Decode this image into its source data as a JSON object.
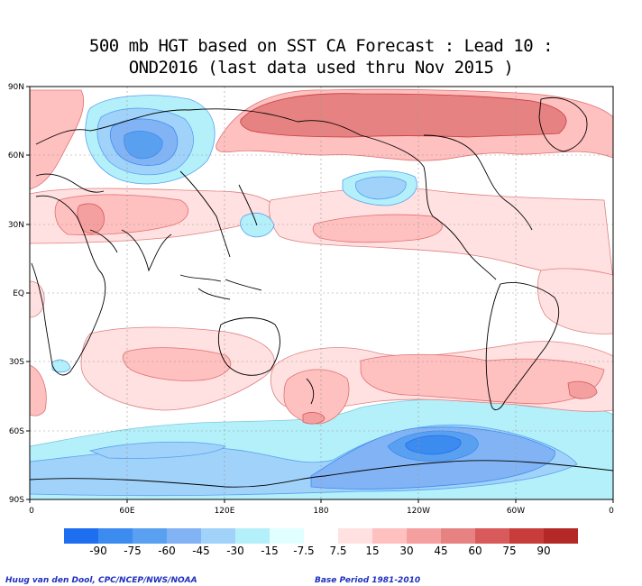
{
  "title": {
    "line1": "500 mb HGT based on SST CA Forecast : Lead 10 :",
    "line2": "OND2016 (last data used thru Nov 2015 )"
  },
  "map": {
    "lat_labels": [
      "90N",
      "60N",
      "30N",
      "EQ",
      "30S",
      "60S",
      "90S"
    ],
    "lon_labels": [
      "0",
      "60E",
      "120E",
      "180",
      "120W",
      "60W",
      "0"
    ],
    "background": "#ffffff",
    "coastline_color": "#000000",
    "gridline_color": "#999999"
  },
  "colorbar": {
    "labels": [
      "-90",
      "-75",
      "-60",
      "-45",
      "-30",
      "-15",
      "-7.5",
      "7.5",
      "15",
      "30",
      "45",
      "60",
      "75",
      "90"
    ],
    "colors": [
      "#1e6ef0",
      "#3c8cf0",
      "#5aa0f0",
      "#82b4f5",
      "#a0d2fa",
      "#b4f0fa",
      "#e1ffff",
      "#ffffff",
      "#ffe1e1",
      "#ffc0c0",
      "#f5a0a0",
      "#e68282",
      "#d85a5a",
      "#c83c3c",
      "#b42828"
    ]
  },
  "credits": {
    "left": "Huug van den Dool, CPC/NCEP/NWS/NOAA",
    "right": "Base Period 1981-2010"
  }
}
